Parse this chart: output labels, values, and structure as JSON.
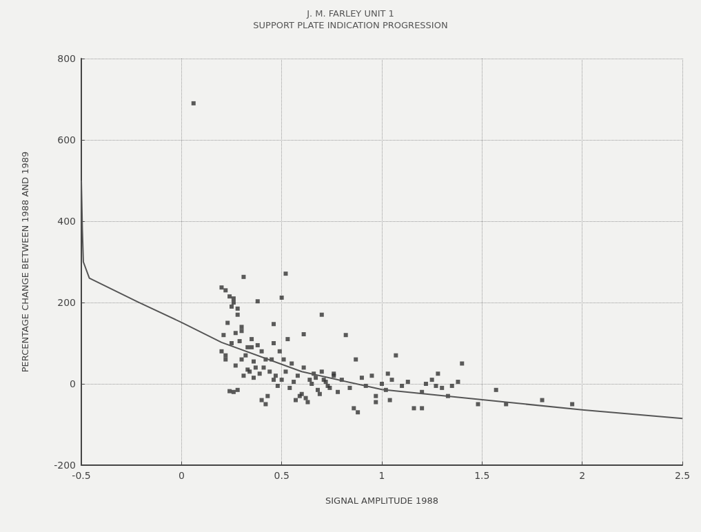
{
  "chart_data": {
    "type": "scatter",
    "title": "J. M. FARLEY UNIT 1",
    "subtitle": "SUPPORT PLATE INDICATION PROGRESSION",
    "xlabel": "SIGNAL AMPLITUDE 1988",
    "ylabel": "PERCENTAGE CHANGE BETWEEN 1988 AND 1989",
    "xlim": [
      -0.5,
      2.5
    ],
    "xticks": [
      -0.5,
      0,
      0.5,
      1,
      1.5,
      2,
      2.5
    ],
    "ylim": [
      -200,
      800
    ],
    "yticks": [
      -200,
      0,
      200,
      400,
      600,
      800
    ],
    "grid": true,
    "series": [
      {
        "color": "#333333",
        "marker": "square",
        "x": [
          0.06,
          0.31,
          0.52,
          0.38,
          0.5,
          0.2,
          0.22,
          0.24,
          0.26,
          0.25,
          0.28,
          0.23,
          0.21,
          0.2,
          0.22,
          0.25,
          0.27,
          0.3,
          0.29,
          0.33,
          0.35,
          0.32,
          0.36,
          0.38,
          0.4,
          0.42,
          0.37,
          0.34,
          0.31,
          0.28,
          0.26,
          0.24,
          0.22,
          0.27,
          0.3,
          0.33,
          0.36,
          0.39,
          0.41,
          0.44,
          0.46,
          0.48,
          0.45,
          0.47,
          0.43,
          0.5,
          0.52,
          0.54,
          0.56,
          0.58,
          0.6,
          0.62,
          0.64,
          0.61,
          0.66,
          0.68,
          0.7,
          0.72,
          0.74,
          0.76,
          0.78,
          0.8,
          0.55,
          0.57,
          0.59,
          0.63,
          0.65,
          0.67,
          0.69,
          0.71,
          0.73,
          0.46,
          0.49,
          0.51,
          0.53,
          0.4,
          0.42,
          0.35,
          0.3,
          0.28,
          0.26,
          0.84,
          0.86,
          0.88,
          0.9,
          0.92,
          0.95,
          0.97,
          1.0,
          1.02,
          1.05,
          1.07,
          1.04,
          1.1,
          1.13,
          1.16,
          1.2,
          1.22,
          1.25,
          1.28,
          1.3,
          1.33,
          1.35,
          1.38,
          1.4,
          1.48,
          1.57,
          1.62,
          1.8,
          1.95,
          0.97,
          0.61,
          0.46,
          0.7,
          0.82,
          0.87,
          0.76,
          1.2,
          1.27,
          1.03
        ],
        "values": [
          690,
          263,
          271,
          203,
          212,
          237,
          230,
          215,
          200,
          190,
          170,
          150,
          120,
          80,
          60,
          100,
          125,
          140,
          105,
          90,
          110,
          70,
          55,
          95,
          80,
          60,
          40,
          30,
          20,
          -15,
          -20,
          -18,
          70,
          45,
          60,
          35,
          15,
          25,
          40,
          30,
          10,
          -5,
          60,
          20,
          -30,
          10,
          30,
          -10,
          5,
          20,
          -25,
          -35,
          10,
          40,
          25,
          -15,
          30,
          5,
          -10,
          20,
          -20,
          10,
          50,
          -40,
          -30,
          -45,
          0,
          15,
          -25,
          10,
          -5,
          100,
          80,
          60,
          110,
          -40,
          -50,
          90,
          130,
          185,
          210,
          -10,
          -60,
          -70,
          15,
          -5,
          20,
          -30,
          0,
          -15,
          10,
          70,
          -40,
          -5,
          5,
          -60,
          -20,
          0,
          10,
          25,
          -10,
          -30,
          -5,
          5,
          50,
          -50,
          -15,
          -50,
          -40,
          -50,
          -45,
          122,
          147,
          170,
          120,
          60,
          25,
          -60,
          -5,
          25
        ]
      },
      {
        "type": "line",
        "color": "#555555",
        "marker": "none",
        "x": [
          -0.5,
          -0.495,
          -0.49,
          -0.46,
          -0.22,
          0,
          0.2,
          0.6,
          1,
          1.5,
          2,
          2.5
        ],
        "values": [
          500,
          380,
          300,
          260,
          202,
          151,
          102,
          30,
          -14,
          -39,
          -64,
          -85
        ]
      }
    ]
  }
}
